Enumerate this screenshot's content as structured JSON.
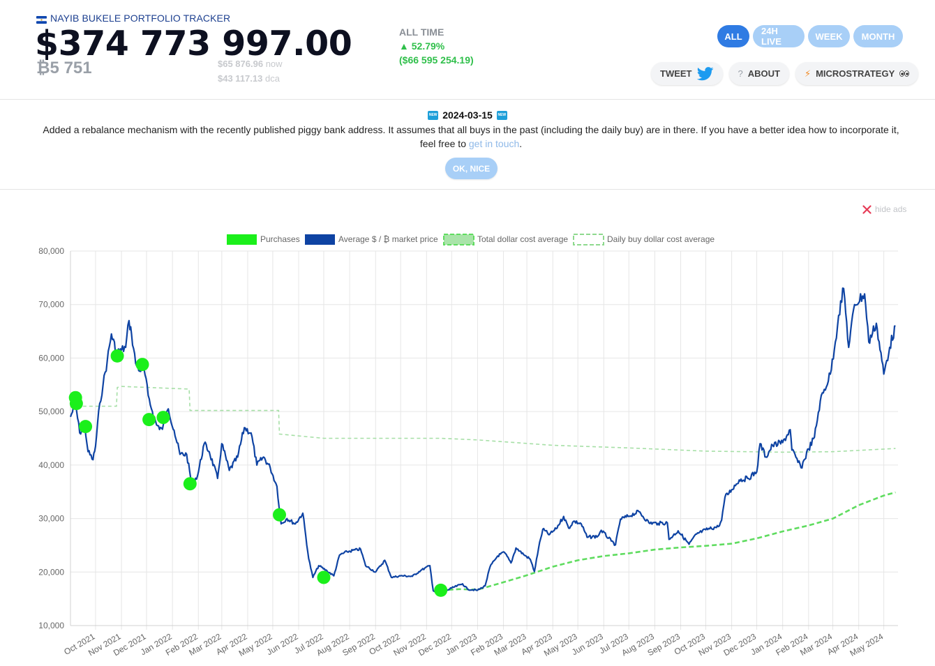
{
  "header": {
    "title": "NAYIB BUKELE PORTFOLIO TRACKER",
    "total_value": "$374 773 997.00",
    "btc_amount": "₿5 751",
    "price_now_value": "$65 876.96",
    "price_now_suffix": "now",
    "price_dca_value": "$43 117.13",
    "price_dca_suffix": "dca",
    "alltime_label": "ALL TIME",
    "alltime_pct": "▲ 52.79%",
    "alltime_usd": "($66 595 254.19)",
    "range_buttons": [
      "ALL",
      "24H LIVE",
      "WEEK",
      "MONTH"
    ],
    "active_range": "ALL",
    "tweet_label": "TWEET",
    "about_label": "ABOUT",
    "microstrategy_label": "MICROSTRATEGY",
    "colors": {
      "accent": "#2f7be3",
      "accent_light": "#a8cff7",
      "positive": "#2fbf4a"
    }
  },
  "notice": {
    "date": "2024-03-15",
    "badge": "NEW",
    "text_before": "Added a rebalance mechanism with the recently published piggy bank address. It assumes that all buys in the past (including the daily buy) are in there. If you have a better idea how to incorporate it, feel free to ",
    "link_text": "get in touch",
    "text_after": ".",
    "ok_label": "OK, NICE"
  },
  "ads": {
    "hide_label": "hide ads"
  },
  "chart_data": {
    "type": "line",
    "legend_position": "top",
    "grid": true,
    "ylim": [
      10000,
      80000
    ],
    "y_ticks": [
      "80,000",
      "70,000",
      "60,000",
      "50,000",
      "40,000",
      "30,000",
      "20,000",
      "10,000"
    ],
    "x_ticks": [
      "Oct 2021",
      "Nov 2021",
      "Dec 2021",
      "Jan 2022",
      "Feb 2022",
      "Mar 2022",
      "Apr 2022",
      "May 2022",
      "Jun 2022",
      "Jul 2022",
      "Aug 2022",
      "Sep 2022",
      "Oct 2022",
      "Nov 2022",
      "Dec 2022",
      "Jan 2023",
      "Feb 2023",
      "Mar 2023",
      "Apr 2023",
      "May 2023",
      "Jun 2023",
      "Jul 2023",
      "Aug 2023",
      "Sep 2023",
      "Oct 2023",
      "Nov 2023",
      "Dec 2023",
      "Jan 2024",
      "Feb 2024",
      "Mar 2024",
      "Apr 2024",
      "May 2024"
    ],
    "series": [
      {
        "name": "Purchases",
        "color": "#1bef1b",
        "style": "points",
        "points": [
          [
            "2021-09-07",
            52600
          ],
          [
            "2021-09-08",
            51500
          ],
          [
            "2021-09-19",
            47200
          ],
          [
            "2021-10-27",
            60400
          ],
          [
            "2021-11-26",
            58800
          ],
          [
            "2021-12-04",
            48500
          ],
          [
            "2021-12-21",
            48900
          ],
          [
            "2022-01-22",
            36500
          ],
          [
            "2022-05-09",
            30700
          ],
          [
            "2022-07-01",
            19000
          ],
          [
            "2022-11-18",
            16600
          ]
        ]
      },
      {
        "name": "Average $ / ₿ market price",
        "color": "#0e43a3",
        "style": "line",
        "points": [
          [
            "2021-09-01",
            49000
          ],
          [
            "2021-09-07",
            51500
          ],
          [
            "2021-09-12",
            46000
          ],
          [
            "2021-09-18",
            47500
          ],
          [
            "2021-09-22",
            42500
          ],
          [
            "2021-09-28",
            41000
          ],
          [
            "2021-10-01",
            43500
          ],
          [
            "2021-10-06",
            51500
          ],
          [
            "2021-10-10",
            55000
          ],
          [
            "2021-10-15",
            59500
          ],
          [
            "2021-10-20",
            64500
          ],
          [
            "2021-10-26",
            61000
          ],
          [
            "2021-11-01",
            61500
          ],
          [
            "2021-11-06",
            62000
          ],
          [
            "2021-11-10",
            67000
          ],
          [
            "2021-11-13",
            64500
          ],
          [
            "2021-11-18",
            59000
          ],
          [
            "2021-11-24",
            57500
          ],
          [
            "2021-11-28",
            58000
          ],
          [
            "2021-12-03",
            53000
          ],
          [
            "2021-12-08",
            50000
          ],
          [
            "2021-12-13",
            47500
          ],
          [
            "2021-12-20",
            46700
          ],
          [
            "2021-12-27",
            50500
          ],
          [
            "2022-01-03",
            46500
          ],
          [
            "2022-01-10",
            42000
          ],
          [
            "2022-01-18",
            42000
          ],
          [
            "2022-01-24",
            36500
          ],
          [
            "2022-01-31",
            38000
          ],
          [
            "2022-02-08",
            44000
          ],
          [
            "2022-02-14",
            42500
          ],
          [
            "2022-02-24",
            37500
          ],
          [
            "2022-03-01",
            44000
          ],
          [
            "2022-03-10",
            39000
          ],
          [
            "2022-03-20",
            41500
          ],
          [
            "2022-03-28",
            47000
          ],
          [
            "2022-04-05",
            46000
          ],
          [
            "2022-04-12",
            40000
          ],
          [
            "2022-04-20",
            41500
          ],
          [
            "2022-04-28",
            39500
          ],
          [
            "2022-05-06",
            36000
          ],
          [
            "2022-05-11",
            29000
          ],
          [
            "2022-05-18",
            30000
          ],
          [
            "2022-05-28",
            29000
          ],
          [
            "2022-06-06",
            31000
          ],
          [
            "2022-06-13",
            22500
          ],
          [
            "2022-06-18",
            19000
          ],
          [
            "2022-06-25",
            21200
          ],
          [
            "2022-07-05",
            20200
          ],
          [
            "2022-07-13",
            19300
          ],
          [
            "2022-07-20",
            23200
          ],
          [
            "2022-07-29",
            23800
          ],
          [
            "2022-08-14",
            24300
          ],
          [
            "2022-08-20",
            21200
          ],
          [
            "2022-09-01",
            20000
          ],
          [
            "2022-09-12",
            22200
          ],
          [
            "2022-09-20",
            19000
          ],
          [
            "2022-10-01",
            19300
          ],
          [
            "2022-10-15",
            19200
          ],
          [
            "2022-10-25",
            20300
          ],
          [
            "2022-11-05",
            21200
          ],
          [
            "2022-11-09",
            16500
          ],
          [
            "2022-11-20",
            16200
          ],
          [
            "2022-12-01",
            17000
          ],
          [
            "2022-12-14",
            17800
          ],
          [
            "2022-12-20",
            16800
          ],
          [
            "2023-01-01",
            16600
          ],
          [
            "2023-01-10",
            17400
          ],
          [
            "2023-01-16",
            21000
          ],
          [
            "2023-01-25",
            23000
          ],
          [
            "2023-02-02",
            23700
          ],
          [
            "2023-02-10",
            21700
          ],
          [
            "2023-02-16",
            24500
          ],
          [
            "2023-02-25",
            23300
          ],
          [
            "2023-03-05",
            22400
          ],
          [
            "2023-03-10",
            20100
          ],
          [
            "2023-03-15",
            24500
          ],
          [
            "2023-03-20",
            28000
          ],
          [
            "2023-03-28",
            27000
          ],
          [
            "2023-04-05",
            28100
          ],
          [
            "2023-04-14",
            30400
          ],
          [
            "2023-04-20",
            28200
          ],
          [
            "2023-04-26",
            29500
          ],
          [
            "2023-05-05",
            29000
          ],
          [
            "2023-05-12",
            26500
          ],
          [
            "2023-05-25",
            26700
          ],
          [
            "2023-05-29",
            27800
          ],
          [
            "2023-06-10",
            25800
          ],
          [
            "2023-06-15",
            25100
          ],
          [
            "2023-06-21",
            29900
          ],
          [
            "2023-06-30",
            30400
          ],
          [
            "2023-07-13",
            31300
          ],
          [
            "2023-07-25",
            29200
          ],
          [
            "2023-08-05",
            29100
          ],
          [
            "2023-08-16",
            29200
          ],
          [
            "2023-08-18",
            26100
          ],
          [
            "2023-08-29",
            27700
          ],
          [
            "2023-09-11",
            25200
          ],
          [
            "2023-09-20",
            27100
          ],
          [
            "2023-10-01",
            27900
          ],
          [
            "2023-10-16",
            28500
          ],
          [
            "2023-10-20",
            29700
          ],
          [
            "2023-10-24",
            34000
          ],
          [
            "2023-11-01",
            35400
          ],
          [
            "2023-11-10",
            37200
          ],
          [
            "2023-11-20",
            37500
          ],
          [
            "2023-12-01",
            38700
          ],
          [
            "2023-12-05",
            44000
          ],
          [
            "2023-12-12",
            41500
          ],
          [
            "2023-12-20",
            43700
          ],
          [
            "2024-01-01",
            44200
          ],
          [
            "2024-01-10",
            46600
          ],
          [
            "2024-01-12",
            42800
          ],
          [
            "2024-01-23",
            39500
          ],
          [
            "2024-02-01",
            43000
          ],
          [
            "2024-02-08",
            45200
          ],
          [
            "2024-02-15",
            52000
          ],
          [
            "2024-02-27",
            57000
          ],
          [
            "2024-03-04",
            63000
          ],
          [
            "2024-03-08",
            68000
          ],
          [
            "2024-03-14",
            73000
          ],
          [
            "2024-03-20",
            62000
          ],
          [
            "2024-03-27",
            70000
          ],
          [
            "2024-04-08",
            72000
          ],
          [
            "2024-04-13",
            63000
          ],
          [
            "2024-04-22",
            66500
          ],
          [
            "2024-05-01",
            57000
          ],
          [
            "2024-05-08",
            62000
          ],
          [
            "2024-05-15",
            66000
          ]
        ]
      },
      {
        "name": "Total dollar cost average",
        "color": "#5fdc5f",
        "style": "dashed",
        "points": [
          [
            "2022-11-18",
            16600
          ],
          [
            "2022-12-10",
            16800
          ],
          [
            "2023-01-01",
            16700
          ],
          [
            "2023-02-01",
            18100
          ],
          [
            "2023-03-01",
            19400
          ],
          [
            "2023-04-01",
            21000
          ],
          [
            "2023-05-01",
            22200
          ],
          [
            "2023-06-01",
            23000
          ],
          [
            "2023-07-01",
            23500
          ],
          [
            "2023-08-01",
            24200
          ],
          [
            "2023-09-01",
            24600
          ],
          [
            "2023-10-01",
            24900
          ],
          [
            "2023-11-01",
            25300
          ],
          [
            "2023-12-01",
            26300
          ],
          [
            "2024-01-01",
            27600
          ],
          [
            "2024-02-01",
            28700
          ],
          [
            "2024-03-01",
            30000
          ],
          [
            "2024-04-01",
            32500
          ],
          [
            "2024-05-01",
            34300
          ],
          [
            "2024-05-15",
            34900
          ]
        ]
      },
      {
        "name": "Daily buy dollar cost average",
        "color": "#a6dfa6",
        "style": "dashed-light",
        "points": [
          [
            "2021-09-01",
            51200
          ],
          [
            "2021-09-07",
            51000
          ],
          [
            "2021-10-26",
            51000
          ],
          [
            "2021-10-27",
            54500
          ],
          [
            "2021-11-01",
            54700
          ],
          [
            "2022-01-21",
            54200
          ],
          [
            "2022-01-22",
            50200
          ],
          [
            "2022-05-08",
            50200
          ],
          [
            "2022-05-09",
            45800
          ],
          [
            "2022-07-01",
            45000
          ],
          [
            "2022-11-18",
            45000
          ],
          [
            "2023-01-01",
            44700
          ],
          [
            "2023-04-01",
            43700
          ],
          [
            "2023-07-01",
            43200
          ],
          [
            "2023-10-01",
            42600
          ],
          [
            "2024-01-01",
            42400
          ],
          [
            "2024-03-01",
            42500
          ],
          [
            "2024-05-15",
            43100
          ]
        ]
      }
    ]
  }
}
